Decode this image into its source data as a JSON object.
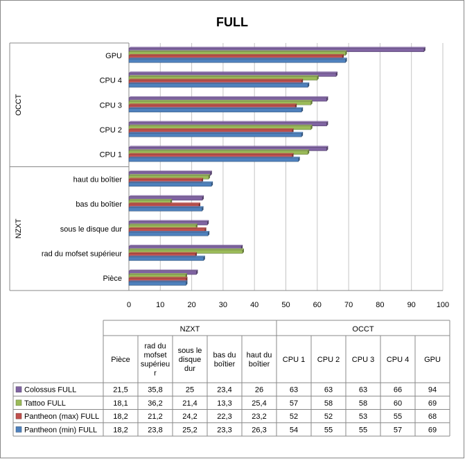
{
  "chart_data": {
    "type": "bar",
    "orientation": "horizontal",
    "title": "FULL",
    "xlim": [
      0,
      100
    ],
    "x_ticks": [
      0,
      10,
      20,
      30,
      40,
      50,
      60,
      70,
      80,
      90,
      100
    ],
    "grid": true,
    "groups": [
      {
        "name": "OCCT",
        "categories": [
          "GPU",
          "CPU 4",
          "CPU 3",
          "CPU 2",
          "CPU 1"
        ]
      },
      {
        "name": "NZXT",
        "categories": [
          "haut du boîtier",
          "bas du boîtier",
          "sous le disque dur",
          "rad du mofset supérieur",
          "Pièce"
        ]
      }
    ],
    "table_groups": [
      {
        "name": "NZXT",
        "columns": [
          "Pièce",
          "rad du mofset supérieur",
          "sous le disque dur",
          "bas du boîtier",
          "haut du boîtier"
        ]
      },
      {
        "name": "OCCT",
        "columns": [
          "CPU 1",
          "CPU 2",
          "CPU 3",
          "CPU 4",
          "GPU"
        ]
      }
    ],
    "column_keys": [
      "Pièce",
      "rad du mofset supérieur",
      "sous le disque dur",
      "bas du boîtier",
      "haut du boîtier",
      "CPU 1",
      "CPU 2",
      "CPU 3",
      "CPU 4",
      "GPU"
    ],
    "table_header_lines": [
      [
        "Pièce"
      ],
      [
        "rad du",
        "mofset",
        "supérieu",
        "r"
      ],
      [
        "sous le",
        "disque",
        "dur"
      ],
      [
        "bas du",
        "boîtier"
      ],
      [
        "haut du",
        "boîtier"
      ],
      [
        "CPU 1"
      ],
      [
        "CPU 2"
      ],
      [
        "CPU 3"
      ],
      [
        "CPU 4"
      ],
      [
        "GPU"
      ]
    ],
    "series": [
      {
        "name": "Colossus FULL",
        "color": "#8064a2",
        "values": [
          21.5,
          35.8,
          25,
          23.4,
          26,
          63,
          63,
          63,
          66,
          94
        ],
        "labels": [
          "21,5",
          "35,8",
          "25",
          "23,4",
          "26",
          "63",
          "63",
          "63",
          "66",
          "94"
        ]
      },
      {
        "name": "Tattoo FULL",
        "color": "#9bbb59",
        "values": [
          18.1,
          36.2,
          21.4,
          13.3,
          25.4,
          57,
          58,
          58,
          60,
          69
        ],
        "labels": [
          "18,1",
          "36,2",
          "21,4",
          "13,3",
          "25,4",
          "57",
          "58",
          "58",
          "60",
          "69"
        ]
      },
      {
        "name": "Pantheon (max) FULL",
        "color": "#c0504d",
        "values": [
          18.2,
          21.2,
          24.2,
          22.3,
          23.2,
          52,
          52,
          53,
          55,
          68
        ],
        "labels": [
          "18,2",
          "21,2",
          "24,2",
          "22,3",
          "23,2",
          "52",
          "52",
          "53",
          "55",
          "68"
        ]
      },
      {
        "name": "Pantheon (min) FULL",
        "color": "#4f81bd",
        "values": [
          18.2,
          23.8,
          25.2,
          23.3,
          26.3,
          54,
          55,
          55,
          57,
          69
        ],
        "labels": [
          "18,2",
          "23,8",
          "25,2",
          "23,3",
          "26,3",
          "54",
          "55",
          "55",
          "57",
          "69"
        ]
      }
    ]
  }
}
